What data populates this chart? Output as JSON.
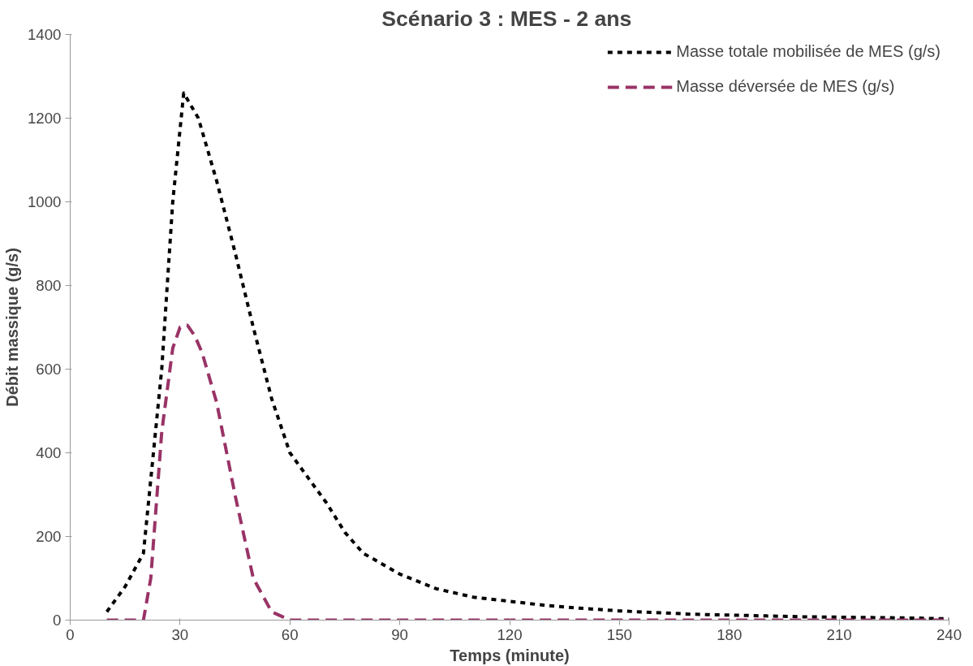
{
  "chart_data": {
    "type": "line",
    "title": "Scénario 3 : MES -  2 ans",
    "xlabel": "Temps (minute)",
    "ylabel": "Débit massique (g/s)",
    "xlim": [
      0,
      240
    ],
    "xticks": [
      0,
      30,
      60,
      90,
      120,
      150,
      180,
      210,
      240
    ],
    "ylim": [
      0,
      1400
    ],
    "yticks": [
      0,
      200,
      400,
      600,
      800,
      1000,
      1200,
      1400
    ],
    "grid": false,
    "legend": "top right",
    "series": [
      {
        "name": "Masse totale mobilisée de MES (g/s)",
        "color": "#000000",
        "line_style": "dotted",
        "x": [
          10,
          15,
          20,
          25,
          28,
          31,
          35,
          40,
          45,
          50,
          55,
          60,
          65,
          70,
          75,
          80,
          90,
          100,
          110,
          120,
          130,
          140,
          150,
          160,
          170,
          180,
          190,
          200,
          210,
          220,
          230,
          240
        ],
        "values": [
          20,
          80,
          160,
          600,
          1000,
          1260,
          1200,
          1050,
          880,
          700,
          530,
          400,
          340,
          280,
          210,
          160,
          110,
          75,
          55,
          45,
          35,
          28,
          22,
          18,
          14,
          12,
          10,
          8,
          7,
          6,
          5,
          3
        ]
      },
      {
        "name": "Masse déversée de MES (g/s)",
        "color": "#993366",
        "line_style": "dashed",
        "x": [
          10,
          20,
          22,
          25,
          28,
          30,
          32,
          34,
          36,
          40,
          45,
          50,
          55,
          60,
          70,
          240
        ],
        "values": [
          0,
          0,
          100,
          450,
          650,
          700,
          705,
          680,
          640,
          520,
          300,
          100,
          20,
          0,
          0,
          0
        ]
      }
    ]
  }
}
